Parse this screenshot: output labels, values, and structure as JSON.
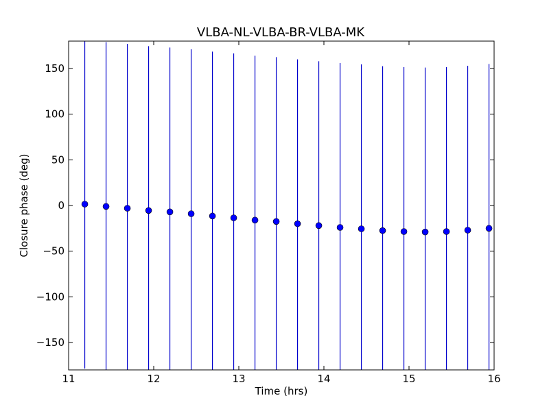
{
  "chart_data": {
    "type": "scatter",
    "title": "VLBA-NL-VLBA-BR-VLBA-MK",
    "xlabel": "Time (hrs)",
    "ylabel": "Closure phase (deg)",
    "xlim": [
      11,
      16
    ],
    "ylim": [
      -180,
      180
    ],
    "xticks": [
      11,
      12,
      13,
      14,
      15,
      16
    ],
    "yticks": [
      -150,
      -100,
      -50,
      0,
      50,
      100,
      150
    ],
    "xtick_labels": [
      "11",
      "12",
      "13",
      "14",
      "15",
      "16"
    ],
    "ytick_labels": [
      "−150",
      "−100",
      "−50",
      "0",
      "50",
      "100",
      "150"
    ],
    "grid": false,
    "colors": {
      "marker": "#0000ff",
      "errorbar": "#0000cc"
    },
    "series": [
      {
        "x": [
          11.19,
          11.44,
          11.69,
          11.94,
          12.19,
          12.44,
          12.69,
          12.94,
          13.19,
          13.44,
          13.69,
          13.94,
          14.19,
          14.44,
          14.69,
          14.94,
          15.19,
          15.44,
          15.69,
          15.94
        ],
        "y": [
          1.5,
          -1,
          -3,
          -5.5,
          -7,
          -9,
          -11.5,
          -13.5,
          -16,
          -17.5,
          -20,
          -22,
          -24,
          -25.5,
          -27.5,
          -28.5,
          -29,
          -28.5,
          -27,
          -25
        ],
        "error": [
          180,
          180,
          180,
          180,
          180,
          180,
          180,
          180,
          180,
          180,
          180,
          180,
          180,
          180,
          180,
          180,
          180,
          180,
          180,
          180
        ]
      }
    ]
  }
}
